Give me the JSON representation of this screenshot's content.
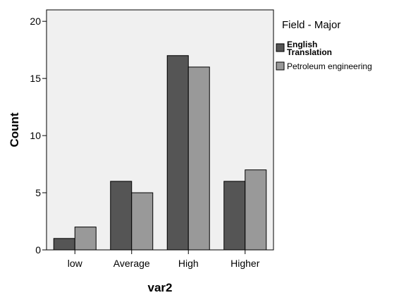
{
  "chart_data": {
    "type": "bar",
    "categories": [
      "low",
      "Average",
      "High",
      "Higher"
    ],
    "series": [
      {
        "name": "English Translation",
        "values": [
          1,
          6,
          17,
          6
        ]
      },
      {
        "name": "Petroleum engineering",
        "values": [
          2,
          5,
          16,
          7
        ]
      }
    ],
    "xlabel": "var2",
    "ylabel": "Count",
    "ylim": [
      0,
      21
    ],
    "yticks": [
      0,
      5,
      10,
      15,
      20
    ],
    "grid": false,
    "legend": {
      "title": "Field - Major",
      "placement": "right",
      "entries": [
        "English Translation",
        "Petroleum engineering"
      ]
    },
    "colors": {
      "plot_background": "#f0f0f0",
      "series_1": "#555555",
      "series_2": "#999999",
      "outline": "#000000"
    }
  }
}
